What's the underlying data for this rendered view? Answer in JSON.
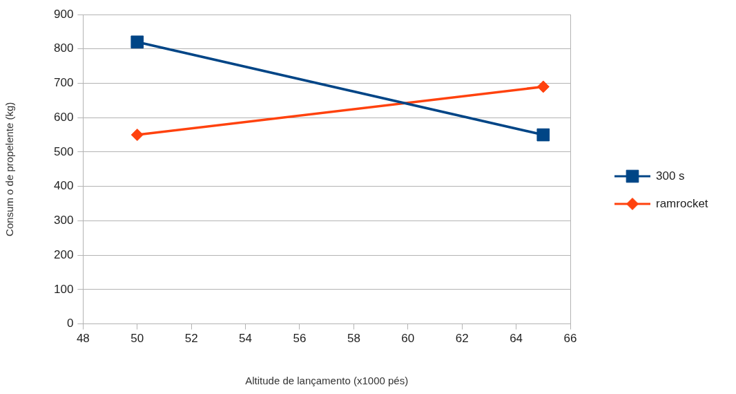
{
  "chart_data": {
    "type": "line",
    "xlabel": "Altitude de lançamento (x1000 pés)",
    "ylabel": "Consum o de propelente (kg)",
    "x": [
      50,
      65
    ],
    "series": [
      {
        "name": "300 s",
        "color": "#004586",
        "values": [
          820,
          550
        ],
        "marker": "square"
      },
      {
        "name": "ramrocket",
        "color": "#ff420e",
        "values": [
          550,
          690
        ],
        "marker": "diamond"
      }
    ],
    "xlim": [
      48,
      66
    ],
    "xticks": [
      48,
      50,
      52,
      54,
      56,
      58,
      60,
      62,
      64,
      66
    ],
    "ylim": [
      0,
      900
    ],
    "yticks": [
      0,
      100,
      200,
      300,
      400,
      500,
      600,
      700,
      800,
      900
    ],
    "grid": "y",
    "legend": "right"
  }
}
